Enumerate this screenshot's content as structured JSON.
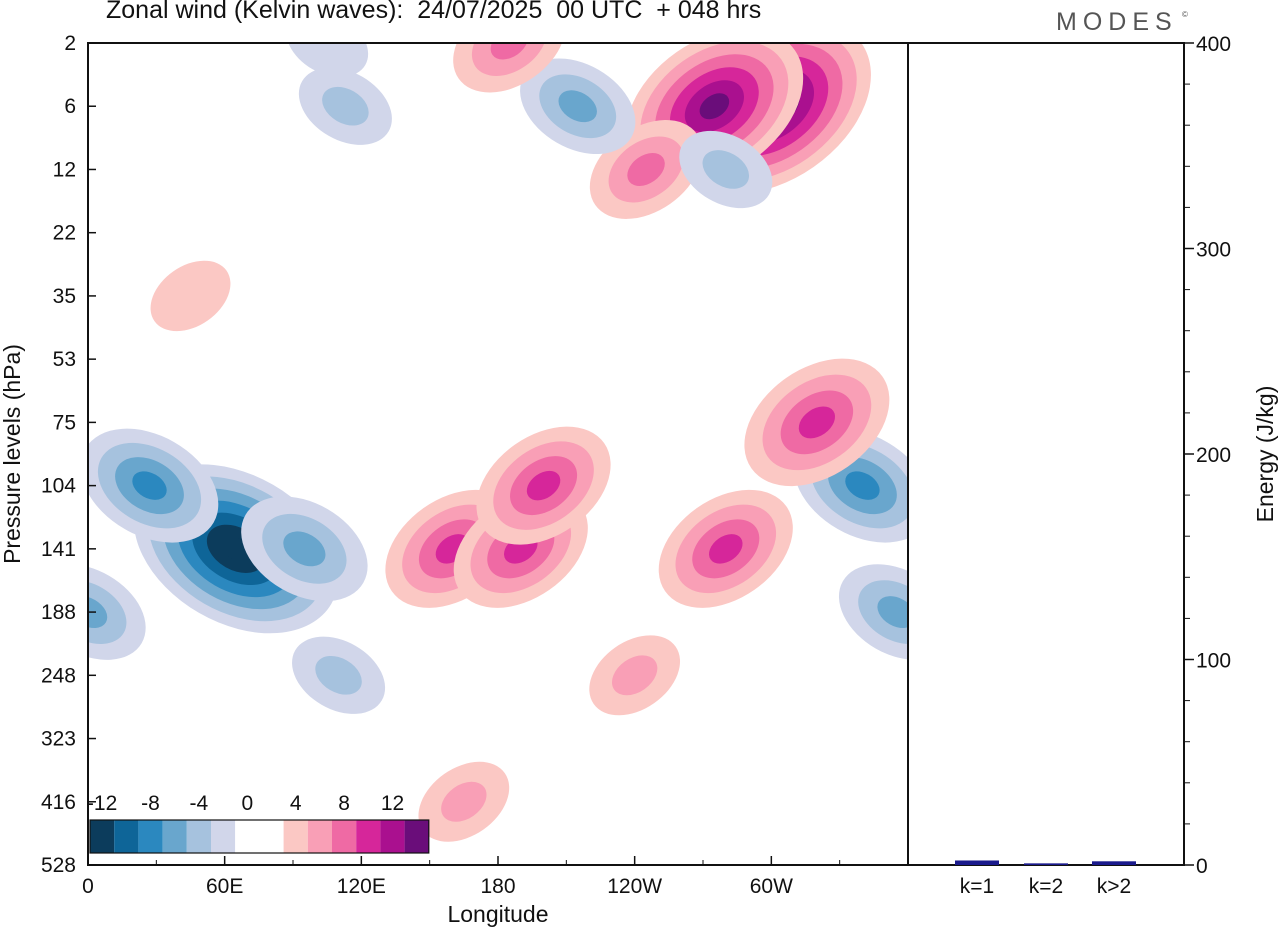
{
  "title": "Zonal wind (Kelvin waves):  24/07/2025  00 UTC  + 048 hrs",
  "brand": "MODES",
  "brand_mark": "©",
  "colors": {
    "neg": [
      "#0c3c5c",
      "#0e6598",
      "#2b88bf",
      "#69a6cd",
      "#a6c2de",
      "#d1d6ea"
    ],
    "zero": "#ffffff",
    "pos": [
      "#fbc8c4",
      "#f99fb6",
      "#ef6aa4",
      "#d6269a",
      "#aa108f",
      "#6a0d7a"
    ],
    "bar_fill": "#1a1a8c"
  },
  "chart_data": [
    {
      "type": "heatmap",
      "title": "Zonal wind (Kelvin waves)",
      "xlabel": "Longitude",
      "ylabel": "Pressure levels (hPa)",
      "x_ticks": [
        "0",
        "60E",
        "120E",
        "180",
        "120W",
        "60W"
      ],
      "y_ticks": [
        "2",
        "6",
        "12",
        "22",
        "35",
        "53",
        "75",
        "104",
        "141",
        "188",
        "248",
        "323",
        "416",
        "528"
      ],
      "colorbar_ticks": [
        "-12",
        "-8",
        "-4",
        "0",
        "4",
        "8",
        "12"
      ],
      "features": [
        {
          "lon": 65,
          "level": 141,
          "value": -14
        },
        {
          "lon": 27,
          "level": 104,
          "value": -8
        },
        {
          "lon": 95,
          "level": 141,
          "value": -7
        },
        {
          "lon": 110,
          "level": 248,
          "value": -4
        },
        {
          "lon": 0,
          "level": 188,
          "value": -6
        },
        {
          "lon": 355,
          "level": 188,
          "value": -6
        },
        {
          "lon": 340,
          "level": 104,
          "value": -8
        },
        {
          "lon": 160,
          "level": 141,
          "value": 8
        },
        {
          "lon": 190,
          "level": 141,
          "value": 8
        },
        {
          "lon": 200,
          "level": 104,
          "value": 8
        },
        {
          "lon": 280,
          "level": 141,
          "value": 8
        },
        {
          "lon": 320,
          "level": 75,
          "value": 9
        },
        {
          "lon": 300,
          "level": 6,
          "value": 14
        },
        {
          "lon": 275,
          "level": 6,
          "value": 12
        },
        {
          "lon": 245,
          "level": 12,
          "value": 6
        },
        {
          "lon": 215,
          "level": 6,
          "value": -6
        },
        {
          "lon": 280,
          "level": 12,
          "value": -4
        },
        {
          "lon": 113,
          "level": 6,
          "value": -4
        },
        {
          "lon": 105,
          "level": 2,
          "value": -3
        },
        {
          "lon": 185,
          "level": 2,
          "value": 6
        },
        {
          "lon": 45,
          "level": 35,
          "value": 3
        },
        {
          "lon": 165,
          "level": 416,
          "value": 4
        },
        {
          "lon": 240,
          "level": 248,
          "value": 4
        }
      ]
    },
    {
      "type": "bar",
      "categories": [
        "k=1",
        "k=2",
        "k>2"
      ],
      "values": [
        2.2,
        0.8,
        1.8
      ],
      "ylabel": "Energy (J/kg)",
      "ylim": [
        0,
        400
      ],
      "y_ticks": [
        0,
        100,
        200,
        300,
        400
      ]
    }
  ]
}
